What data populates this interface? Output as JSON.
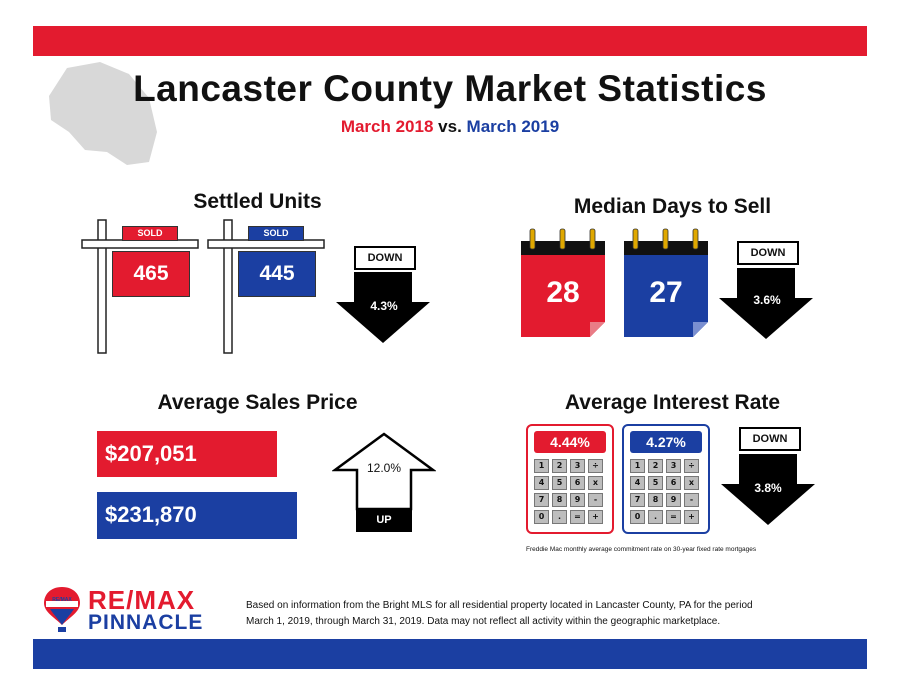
{
  "header": {
    "title": "Lancaster County Market Statistics",
    "subtitle": {
      "period_a": "March 2018",
      "vs": "vs.",
      "period_b": "March 2019"
    }
  },
  "settled_units": {
    "title": "Settled Units",
    "sign_2018": {
      "tag": "SOLD",
      "value": "465"
    },
    "sign_2019": {
      "tag": "SOLD",
      "value": "445"
    },
    "trend": {
      "label": "DOWN",
      "percent": "4.3%"
    }
  },
  "median_days": {
    "title": "Median Days to Sell",
    "cal_2018": "28",
    "cal_2019": "27",
    "trend": {
      "label": "DOWN",
      "percent": "3.6%"
    }
  },
  "avg_price": {
    "title": "Average Sales Price",
    "price_2018": "$207,051",
    "price_2019": "$231,870",
    "trend": {
      "label": "UP",
      "percent": "12.0%"
    }
  },
  "interest_rate": {
    "title": "Average Interest Rate",
    "rate_2018": "4.44%",
    "rate_2019": "4.27%",
    "keys": [
      "1",
      "2",
      "3",
      "÷",
      "4",
      "5",
      "6",
      "x",
      "7",
      "8",
      "9",
      "-",
      "0",
      ".",
      "=",
      "+"
    ],
    "trend": {
      "label": "DOWN",
      "percent": "3.8%"
    },
    "footnote": "Freddie Mac monthly average commitment rate on 30-year fixed rate mortgages"
  },
  "footer": {
    "logo_line1": "RE/MAX",
    "logo_line2": "PINNACLE",
    "balloon_text": "RE/MAX",
    "line1": "Based on information from the Bright MLS for all residential property located in Lancaster County, PA for the period",
    "line2": "March 1, 2019, through March 31, 2019.  Data may not reflect all activity within the geographic marketplace."
  },
  "colors": {
    "red": "#e31b2f",
    "blue": "#1b3fa2",
    "map_gray": "#d8d8d8"
  }
}
